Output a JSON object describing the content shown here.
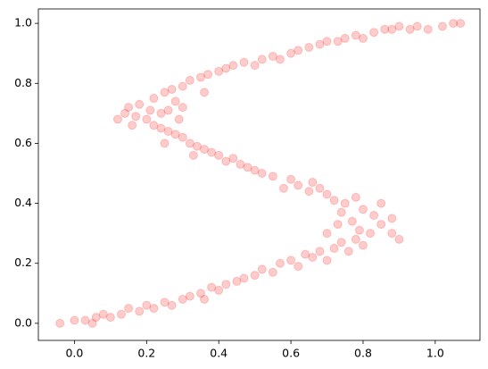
{
  "chart_data": {
    "type": "scatter",
    "color": "#ff0000",
    "opacity": 0.2,
    "x": [
      -0.04,
      0,
      0.03,
      0.06,
      0.08,
      0.05,
      0.1,
      0.13,
      0.15,
      0.18,
      0.2,
      0.22,
      0.25,
      0.27,
      0.3,
      0.32,
      0.35,
      0.38,
      0.36,
      0.4,
      0.42,
      0.45,
      0.47,
      0.5,
      0.52,
      0.55,
      0.57,
      0.6,
      0.62,
      0.64,
      0.66,
      0.68,
      0.7,
      0.72,
      0.74,
      0.76,
      0.78,
      0.8,
      0.82,
      0.79,
      0.85,
      0.77,
      0.88,
      0.83,
      0.8,
      0.75,
      0.78,
      0.72,
      0.7,
      0.74,
      0.68,
      0.65,
      0.66,
      0.62,
      0.6,
      0.58,
      0.55,
      0.52,
      0.5,
      0.48,
      0.46,
      0.44,
      0.42,
      0.4,
      0.38,
      0.36,
      0.34,
      0.32,
      0.3,
      0.28,
      0.33,
      0.26,
      0.24,
      0.22,
      0.2,
      0.17,
      0.14,
      0.12,
      0.15,
      0.18,
      0.21,
      0.25,
      0.16,
      0.85,
      0.88,
      0.9,
      0.7,
      0.73,
      0.22,
      0.25,
      0.27,
      0.3,
      0.28,
      0.32,
      0.35,
      0.37,
      0.4,
      0.42,
      0.44,
      0.47,
      0.5,
      0.52,
      0.55,
      0.57,
      0.6,
      0.62,
      0.65,
      0.68,
      0.7,
      0.73,
      0.75,
      0.78,
      0.8,
      0.83,
      0.86,
      0.88,
      0.9,
      0.95,
      0.98,
      1.02,
      1.05,
      1.07,
      0.93,
      0.36,
      0.3,
      0.26,
      0.29,
      0.24
    ],
    "y": [
      0,
      0.01,
      0.01,
      0.02,
      0.03,
      0,
      0.02,
      0.03,
      0.05,
      0.04,
      0.06,
      0.05,
      0.07,
      0.06,
      0.08,
      0.09,
      0.1,
      0.12,
      0.08,
      0.11,
      0.13,
      0.14,
      0.15,
      0.16,
      0.18,
      0.17,
      0.2,
      0.21,
      0.19,
      0.23,
      0.22,
      0.24,
      0.21,
      0.25,
      0.27,
      0.24,
      0.28,
      0.26,
      0.3,
      0.31,
      0.33,
      0.34,
      0.3,
      0.36,
      0.38,
      0.4,
      0.42,
      0.41,
      0.43,
      0.37,
      0.45,
      0.44,
      0.47,
      0.46,
      0.48,
      0.45,
      0.49,
      0.5,
      0.51,
      0.52,
      0.53,
      0.55,
      0.54,
      0.56,
      0.57,
      0.58,
      0.59,
      0.6,
      0.62,
      0.63,
      0.56,
      0.64,
      0.65,
      0.66,
      0.68,
      0.69,
      0.7,
      0.68,
      0.72,
      0.73,
      0.71,
      0.6,
      0.66,
      0.4,
      0.35,
      0.28,
      0.3,
      0.33,
      0.75,
      0.77,
      0.78,
      0.79,
      0.74,
      0.81,
      0.82,
      0.83,
      0.84,
      0.85,
      0.86,
      0.87,
      0.86,
      0.88,
      0.89,
      0.88,
      0.9,
      0.91,
      0.92,
      0.93,
      0.94,
      0.94,
      0.95,
      0.96,
      0.95,
      0.97,
      0.98,
      0.98,
      0.99,
      0.99,
      0.98,
      0.99,
      1,
      1,
      0.98,
      0.77,
      0.72,
      0.71,
      0.68,
      0.7
    ],
    "xlim": [
      -0.1,
      1.124
    ],
    "ylim": [
      -0.057,
      1.048
    ],
    "xticks": [
      {
        "value": 0,
        "label": "0.0"
      },
      {
        "value": 0.2,
        "label": "0.2"
      },
      {
        "value": 0.4,
        "label": "0.4"
      },
      {
        "value": 0.6,
        "label": "0.6"
      },
      {
        "value": 0.8,
        "label": "0.8"
      },
      {
        "value": 1,
        "label": "1.0"
      }
    ],
    "yticks": [
      {
        "value": 0,
        "label": "0.0"
      },
      {
        "value": 0.2,
        "label": "0.2"
      },
      {
        "value": 0.4,
        "label": "0.4"
      },
      {
        "value": 0.6,
        "label": "0.6"
      },
      {
        "value": 0.8,
        "label": "0.8"
      },
      {
        "value": 1,
        "label": "1.0"
      }
    ]
  }
}
